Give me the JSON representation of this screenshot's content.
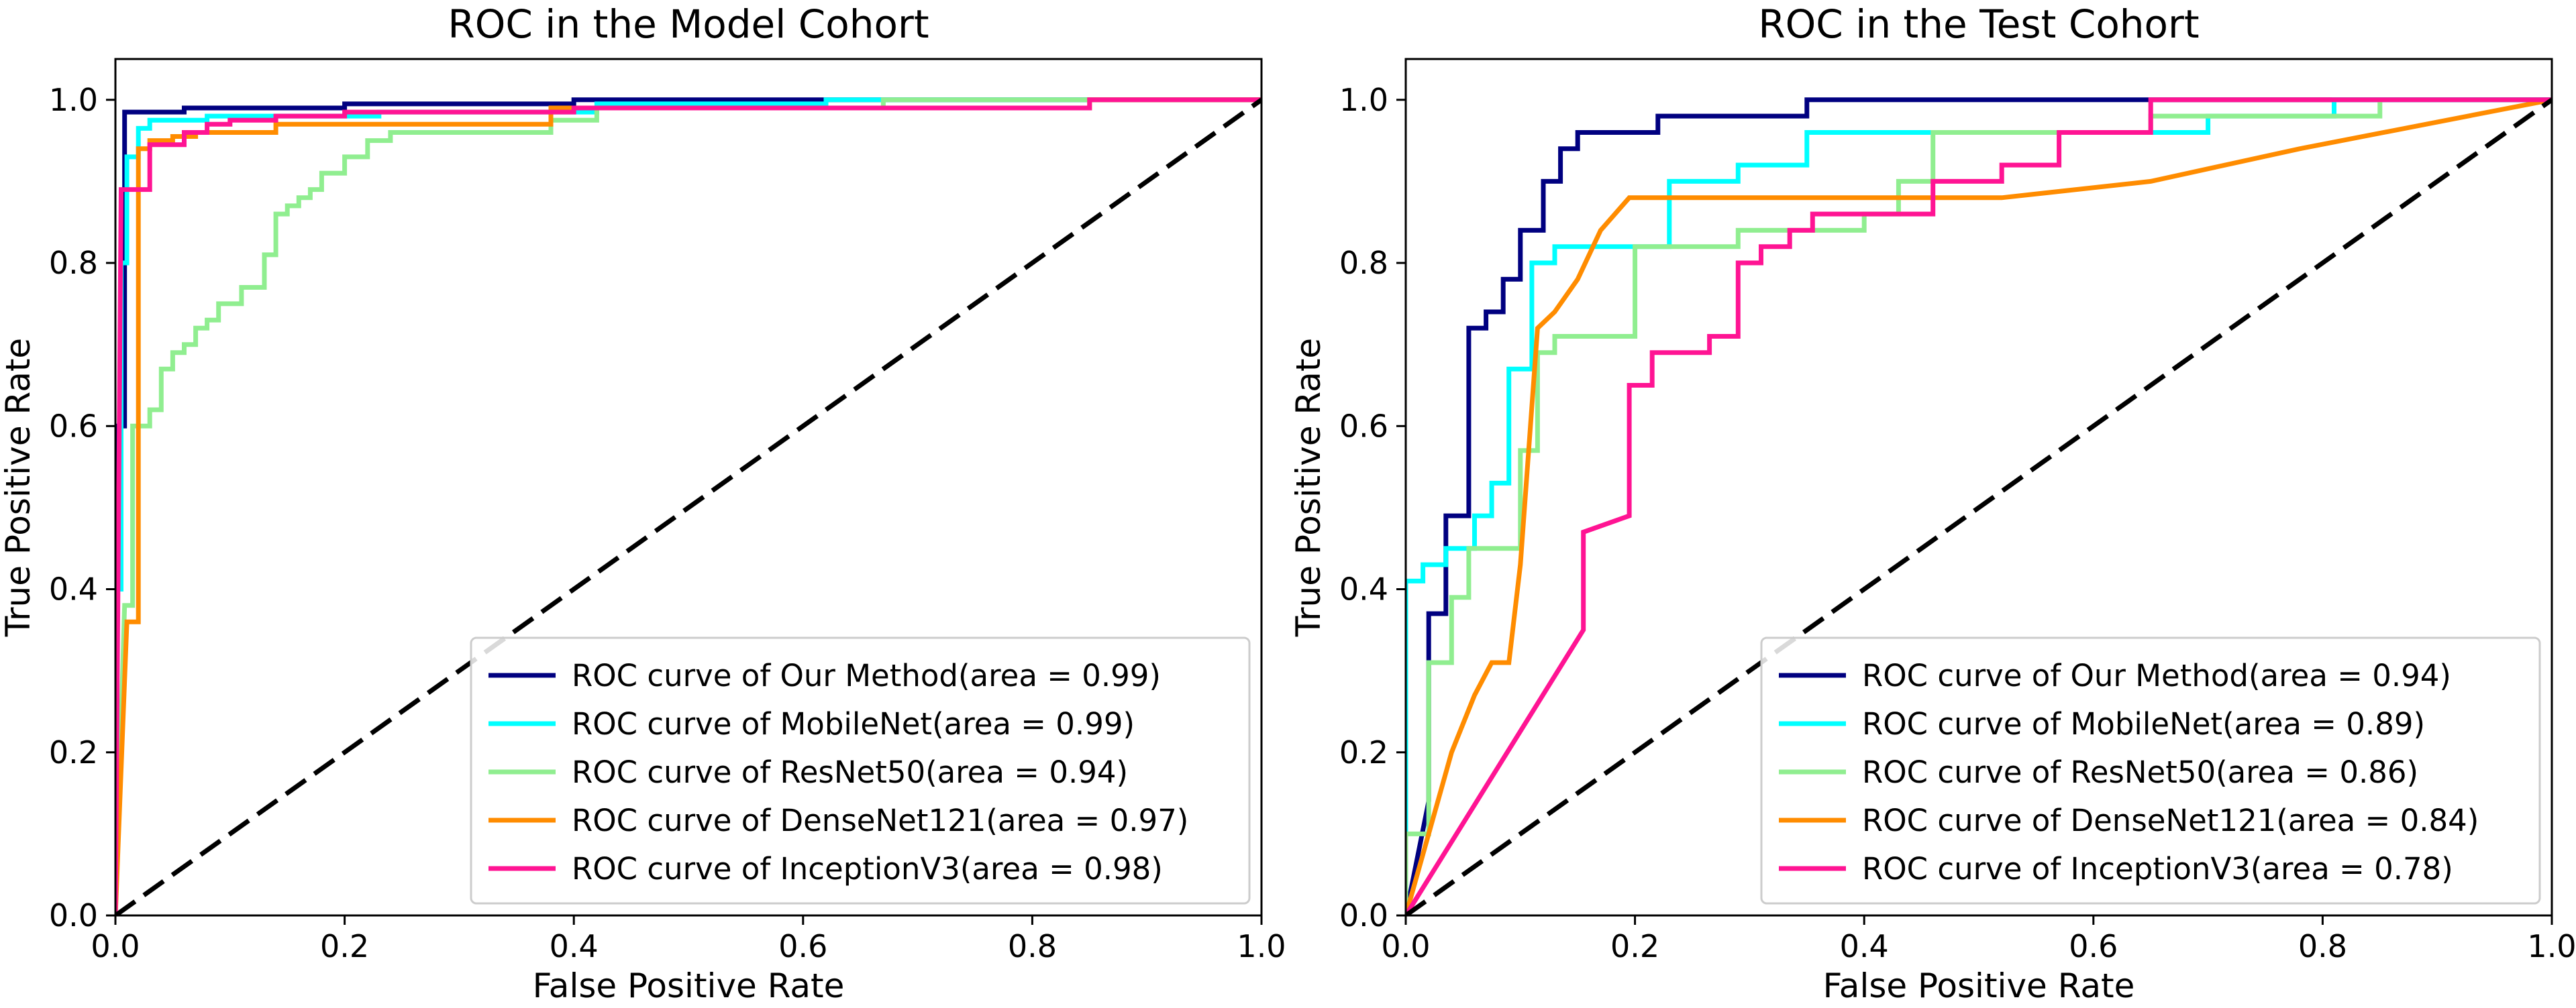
{
  "chart_data": [
    {
      "type": "line",
      "title": "ROC in the Model Cohort",
      "xlabel": "False Positive Rate",
      "ylabel": "True Positive Rate",
      "xlim": [
        0.0,
        1.0
      ],
      "ylim": [
        0.0,
        1.05
      ],
      "xticks": [
        "0.0",
        "0.2",
        "0.4",
        "0.6",
        "0.8",
        "1.0"
      ],
      "yticks": [
        "0.0",
        "0.2",
        "0.4",
        "0.6",
        "0.8",
        "1.0"
      ],
      "grid": false,
      "legend_position": "bottom-right",
      "diagonal": {
        "x": [
          0,
          1
        ],
        "y": [
          0,
          1
        ],
        "style": "dashed",
        "color": "#000000"
      },
      "series": [
        {
          "name": "ROC curve of Our Method(area = 0.99)",
          "color": "#000080",
          "x": [
            0,
            0,
            0.008,
            0.008,
            0.02,
            0.02,
            0.06,
            0.06,
            0.2,
            0.2,
            0.4,
            0.4,
            0.64,
            0.64,
            1.0
          ],
          "y": [
            0,
            0.6,
            0.6,
            0.985,
            0.985,
            0.985,
            0.985,
            0.99,
            0.99,
            0.995,
            0.995,
            1.0,
            1.0,
            1.0,
            1.0
          ]
        },
        {
          "name": "ROC curve of MobileNet(area = 0.99)",
          "color": "#00FFFF",
          "x": [
            0,
            0,
            0.005,
            0.005,
            0.01,
            0.01,
            0.02,
            0.02,
            0.03,
            0.03,
            0.08,
            0.08,
            0.23,
            0.23,
            0.42,
            0.42,
            0.62,
            0.62,
            1.0
          ],
          "y": [
            0,
            0.4,
            0.4,
            0.8,
            0.8,
            0.93,
            0.93,
            0.965,
            0.965,
            0.975,
            0.975,
            0.98,
            0.98,
            0.985,
            0.985,
            0.995,
            0.995,
            1.0,
            1.0
          ]
        },
        {
          "name": "ROC curve of ResNet50(area = 0.94)",
          "color": "#90EE90",
          "x": [
            0,
            0.008,
            0.015,
            0.015,
            0.03,
            0.03,
            0.04,
            0.04,
            0.05,
            0.05,
            0.06,
            0.06,
            0.07,
            0.07,
            0.08,
            0.08,
            0.09,
            0.09,
            0.11,
            0.11,
            0.13,
            0.13,
            0.14,
            0.14,
            0.15,
            0.15,
            0.16,
            0.16,
            0.17,
            0.17,
            0.18,
            0.18,
            0.2,
            0.2,
            0.22,
            0.22,
            0.24,
            0.24,
            0.26,
            0.26,
            0.38,
            0.38,
            0.42,
            0.42,
            0.67,
            0.67,
            1.0
          ],
          "y": [
            0,
            0.38,
            0.38,
            0.6,
            0.6,
            0.62,
            0.62,
            0.67,
            0.67,
            0.69,
            0.69,
            0.7,
            0.7,
            0.72,
            0.72,
            0.73,
            0.73,
            0.75,
            0.75,
            0.77,
            0.77,
            0.81,
            0.81,
            0.86,
            0.86,
            0.87,
            0.87,
            0.88,
            0.88,
            0.89,
            0.89,
            0.91,
            0.91,
            0.93,
            0.93,
            0.95,
            0.95,
            0.96,
            0.96,
            0.96,
            0.96,
            0.975,
            0.975,
            0.99,
            0.99,
            1.0,
            1.0
          ]
        },
        {
          "name": "ROC curve of DenseNet121(area = 0.97)",
          "color": "#FF8C00",
          "x": [
            0,
            0.01,
            0.01,
            0.02,
            0.02,
            0.03,
            0.03,
            0.05,
            0.05,
            0.07,
            0.07,
            0.14,
            0.14,
            0.38,
            0.38,
            0.85,
            0.85,
            1.0
          ],
          "y": [
            0,
            0.36,
            0.36,
            0.36,
            0.94,
            0.94,
            0.95,
            0.95,
            0.955,
            0.955,
            0.96,
            0.96,
            0.97,
            0.97,
            0.99,
            0.99,
            1.0,
            1.0
          ]
        },
        {
          "name": "ROC curve of InceptionV3(area = 0.98)",
          "color": "#FF1493",
          "x": [
            0,
            0.005,
            0.005,
            0.03,
            0.03,
            0.06,
            0.06,
            0.08,
            0.08,
            0.1,
            0.1,
            0.14,
            0.14,
            0.2,
            0.2,
            0.4,
            0.4,
            0.85,
            0.85,
            1.0
          ],
          "y": [
            0,
            0.89,
            0.89,
            0.89,
            0.945,
            0.945,
            0.96,
            0.96,
            0.97,
            0.97,
            0.975,
            0.975,
            0.98,
            0.98,
            0.985,
            0.985,
            0.99,
            0.99,
            1.0,
            1.0
          ]
        }
      ]
    },
    {
      "type": "line",
      "title": "ROC in the Test Cohort",
      "xlabel": "False Positive Rate",
      "ylabel": "True Positive Rate",
      "xlim": [
        0.0,
        1.0
      ],
      "ylim": [
        0.0,
        1.05
      ],
      "xticks": [
        "0.0",
        "0.2",
        "0.4",
        "0.6",
        "0.8",
        "1.0"
      ],
      "yticks": [
        "0.0",
        "0.2",
        "0.4",
        "0.6",
        "0.8",
        "1.0"
      ],
      "grid": false,
      "legend_position": "bottom-right",
      "diagonal": {
        "x": [
          0,
          1
        ],
        "y": [
          0,
          1
        ],
        "style": "dashed",
        "color": "#000000"
      },
      "series": [
        {
          "name": "ROC curve of Our Method(area = 0.94)",
          "color": "#000080",
          "x": [
            0,
            0.02,
            0.02,
            0.035,
            0.035,
            0.055,
            0.055,
            0.07,
            0.07,
            0.085,
            0.085,
            0.1,
            0.1,
            0.12,
            0.12,
            0.135,
            0.135,
            0.15,
            0.15,
            0.17,
            0.17,
            0.22,
            0.22,
            0.25,
            0.25,
            0.29,
            0.29,
            0.35,
            0.35,
            0.78,
            1.0
          ],
          "y": [
            0,
            0.14,
            0.37,
            0.37,
            0.49,
            0.49,
            0.72,
            0.72,
            0.74,
            0.74,
            0.78,
            0.78,
            0.84,
            0.84,
            0.9,
            0.9,
            0.94,
            0.94,
            0.96,
            0.96,
            0.96,
            0.96,
            0.98,
            0.98,
            0.98,
            0.98,
            0.98,
            0.98,
            1.0,
            1.0,
            1.0
          ]
        },
        {
          "name": "ROC curve of MobileNet(area = 0.89)",
          "color": "#00FFFF",
          "x": [
            0,
            0,
            0.015,
            0.015,
            0.035,
            0.035,
            0.06,
            0.06,
            0.075,
            0.075,
            0.09,
            0.09,
            0.11,
            0.11,
            0.13,
            0.13,
            0.17,
            0.17,
            0.23,
            0.23,
            0.29,
            0.29,
            0.35,
            0.35,
            0.46,
            0.46,
            0.7,
            0.7,
            0.81,
            0.81,
            1.0
          ],
          "y": [
            0,
            0.41,
            0.41,
            0.43,
            0.43,
            0.45,
            0.45,
            0.49,
            0.49,
            0.53,
            0.53,
            0.67,
            0.67,
            0.8,
            0.8,
            0.82,
            0.82,
            0.82,
            0.82,
            0.9,
            0.9,
            0.92,
            0.92,
            0.96,
            0.96,
            0.96,
            0.96,
            0.98,
            0.98,
            1.0,
            1.0
          ]
        },
        {
          "name": "ROC curve of ResNet50(area = 0.86)",
          "color": "#90EE90",
          "x": [
            0,
            0,
            0.02,
            0.02,
            0.04,
            0.04,
            0.055,
            0.055,
            0.08,
            0.08,
            0.1,
            0.1,
            0.115,
            0.115,
            0.13,
            0.13,
            0.2,
            0.2,
            0.24,
            0.24,
            0.29,
            0.29,
            0.33,
            0.33,
            0.4,
            0.4,
            0.43,
            0.43,
            0.46,
            0.46,
            0.65,
            0.65,
            0.81,
            0.81,
            0.85,
            0.85
          ],
          "y": [
            0,
            0.1,
            0.1,
            0.31,
            0.31,
            0.39,
            0.39,
            0.45,
            0.45,
            0.45,
            0.45,
            0.57,
            0.57,
            0.69,
            0.69,
            0.71,
            0.71,
            0.82,
            0.82,
            0.82,
            0.82,
            0.84,
            0.84,
            0.84,
            0.84,
            0.86,
            0.86,
            0.9,
            0.9,
            0.96,
            0.96,
            0.98,
            0.98,
            0.98,
            0.98,
            1.0
          ]
        },
        {
          "name": "ROC curve of DenseNet121(area = 0.84)",
          "color": "#FF8C00",
          "x": [
            0,
            0.04,
            0.04,
            0.06,
            0.06,
            0.075,
            0.075,
            0.09,
            0.09,
            0.1,
            0.1,
            0.115,
            0.115,
            0.13,
            0.13,
            0.15,
            0.15,
            0.17,
            0.17,
            0.195,
            0.195,
            0.35,
            0.35,
            0.52,
            0.52,
            0.65,
            0.65,
            0.78,
            0.78,
            1.0
          ],
          "y": [
            0,
            0.2,
            0.2,
            0.27,
            0.27,
            0.31,
            0.31,
            0.31,
            0.31,
            0.43,
            0.43,
            0.72,
            0.72,
            0.74,
            0.74,
            0.78,
            0.78,
            0.84,
            0.84,
            0.88,
            0.88,
            0.88,
            0.88,
            0.88,
            0.88,
            0.9,
            0.9,
            0.94,
            0.94,
            1.0
          ]
        },
        {
          "name": "ROC curve of InceptionV3(area = 0.78)",
          "color": "#FF1493",
          "x": [
            0,
            0.155,
            0.155,
            0.195,
            0.195,
            0.215,
            0.215,
            0.265,
            0.265,
            0.29,
            0.29,
            0.31,
            0.31,
            0.335,
            0.335,
            0.355,
            0.355,
            0.385,
            0.385,
            0.46,
            0.46,
            0.52,
            0.52,
            0.57,
            0.57,
            0.65,
            0.65,
            1.0
          ],
          "y": [
            0,
            0.35,
            0.47,
            0.49,
            0.65,
            0.65,
            0.69,
            0.69,
            0.71,
            0.71,
            0.8,
            0.8,
            0.82,
            0.82,
            0.84,
            0.84,
            0.86,
            0.86,
            0.86,
            0.86,
            0.9,
            0.9,
            0.92,
            0.92,
            0.96,
            0.96,
            1.0,
            1.0
          ]
        }
      ]
    }
  ]
}
